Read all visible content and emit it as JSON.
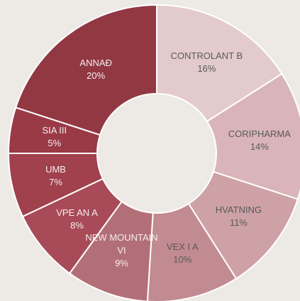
{
  "chart_data": {
    "type": "donut",
    "categories": [
      "CONTROLANT B",
      "CORIPHARMA",
      "HVATNING",
      "VEX I A",
      "NEW MOUNTAIN VI",
      "VPE AN A",
      "UMB",
      "SIA III",
      "ANNAÐ"
    ],
    "values": [
      16,
      14,
      11,
      10,
      9,
      8,
      7,
      5,
      20
    ],
    "value_labels": [
      "16%",
      "14%",
      "11%",
      "10%",
      "9%",
      "8%",
      "7%",
      "5%",
      "20%"
    ],
    "colors": [
      "#e3cacd",
      "#d9b4b8",
      "#cea1a7",
      "#c28a91",
      "#b36f78",
      "#a94a58",
      "#a0414d",
      "#9a3a47",
      "#923843"
    ]
  }
}
